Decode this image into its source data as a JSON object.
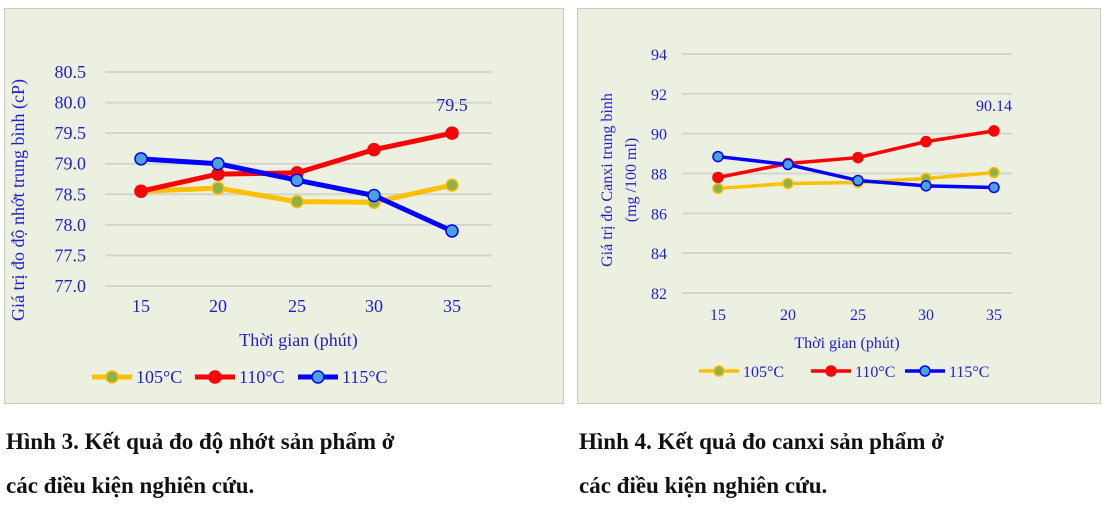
{
  "chart_data": [
    {
      "type": "line",
      "title": "",
      "xlabel": "Thời gian (phút)",
      "ylabel": "Giá trị đo độ nhớt trung bình (cP)",
      "categories": [
        "15",
        "20",
        "25",
        "30",
        "35"
      ],
      "ylim": [
        77.0,
        80.5
      ],
      "yticks": [
        "77.0",
        "77.5",
        "78.0",
        "78.5",
        "79.0",
        "79.5",
        "80.0",
        "80.5"
      ],
      "series": [
        {
          "name": "105°C",
          "color": "#ffc000",
          "values": [
            78.55,
            78.6,
            78.38,
            78.37,
            78.65
          ]
        },
        {
          "name": "110°C",
          "color": "#ff0000",
          "values": [
            78.55,
            78.83,
            78.85,
            79.23,
            79.5
          ]
        },
        {
          "name": "115°C",
          "color": "#0000ff",
          "values": [
            79.08,
            79.0,
            78.73,
            78.48,
            77.9
          ]
        }
      ],
      "annotation": "79.5",
      "legend": "bottom",
      "grid": true
    },
    {
      "type": "line",
      "title": "",
      "xlabel": "Thời gian (phút)",
      "ylabel": "Giá trị đo Canxi trung bình",
      "ylabel2": "(mg /100 ml)",
      "categories": [
        "15",
        "20",
        "25",
        "30",
        "35"
      ],
      "ylim": [
        82,
        94
      ],
      "yticks": [
        "82",
        "84",
        "86",
        "88",
        "90",
        "92",
        "94"
      ],
      "series": [
        {
          "name": "105°C",
          "color": "#ffc000",
          "values": [
            87.25,
            87.5,
            87.55,
            87.75,
            88.05
          ]
        },
        {
          "name": "110°C",
          "color": "#ff0000",
          "values": [
            87.8,
            88.5,
            88.8,
            89.6,
            90.14
          ]
        },
        {
          "name": "115°C",
          "color": "#0000ff",
          "values": [
            88.85,
            88.45,
            87.65,
            87.38,
            87.3
          ]
        }
      ],
      "annotation": "90.14",
      "legend": "bottom",
      "grid": true
    }
  ],
  "captions": {
    "fig3_line1": "Hình 3. Kết quả đo độ nhớt sản phẩm ở",
    "fig3_line2": "các điều kiện nghiên cứu.",
    "fig4_line1": "Hình 4. Kết quả đo canxi sản phẩm ở",
    "fig4_line2": "các điều kiện nghiên cứu."
  }
}
